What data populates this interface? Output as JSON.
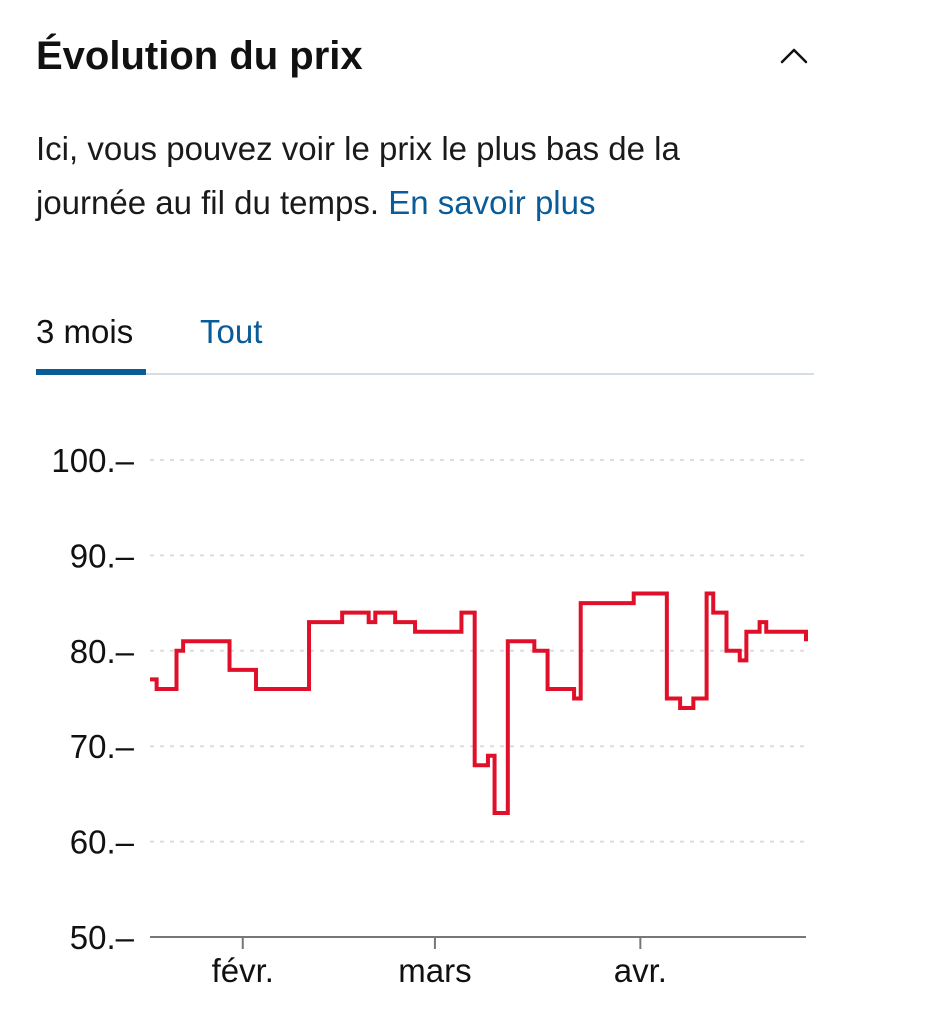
{
  "section": {
    "title": "Évolution du prix",
    "collapse_icon": "chevron-up-icon"
  },
  "description": {
    "text": "Ici, vous pouvez voir le prix le plus bas de la journée au fil du temps. ",
    "link": "En savoir plus"
  },
  "tabs": [
    {
      "label": "3 mois",
      "active": true
    },
    {
      "label": "Tout",
      "active": false
    }
  ],
  "colors": {
    "line": "#e0102a",
    "accent": "#0a5c99",
    "grid": "#dddddd",
    "axis": "#777777"
  },
  "chart_data": {
    "type": "line",
    "step": true,
    "ylim": [
      50,
      100
    ],
    "y_ticks": [
      "100.–",
      "90.–",
      "80.–",
      "70.–",
      "60.–",
      "50.–"
    ],
    "y_tick_values": [
      100,
      90,
      80,
      70,
      60,
      50
    ],
    "x_range": [
      "2024-01-18",
      "2024-04-26"
    ],
    "x_ticks": [
      {
        "label": "févr.",
        "date": "2024-02-01"
      },
      {
        "label": "mars",
        "date": "2024-03-01"
      },
      {
        "label": "avr.",
        "date": "2024-04-01"
      }
    ],
    "grid": true,
    "series": [
      {
        "x": [
          "2024-01-18",
          "2024-01-19",
          "2024-01-22",
          "2024-01-23",
          "2024-01-30",
          "2024-02-03",
          "2024-02-11",
          "2024-02-16",
          "2024-02-20",
          "2024-02-21",
          "2024-02-24",
          "2024-02-27",
          "2024-03-05",
          "2024-03-07",
          "2024-03-09",
          "2024-03-10",
          "2024-03-12",
          "2024-03-16",
          "2024-03-18",
          "2024-03-22",
          "2024-03-23",
          "2024-03-26",
          "2024-03-31",
          "2024-04-05",
          "2024-04-07",
          "2024-04-09",
          "2024-04-11",
          "2024-04-12",
          "2024-04-14",
          "2024-04-16",
          "2024-04-17",
          "2024-04-19",
          "2024-04-20",
          "2024-04-26"
        ],
        "values": [
          77,
          76,
          80,
          81,
          78,
          76,
          83,
          84,
          83,
          84,
          83,
          82,
          84,
          68,
          69,
          63,
          81,
          80,
          76,
          75,
          85,
          85,
          86,
          75,
          74,
          75,
          86,
          84,
          80,
          79,
          82,
          83,
          82,
          81
        ]
      }
    ]
  }
}
